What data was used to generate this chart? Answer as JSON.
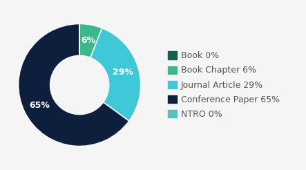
{
  "labels": [
    "Book",
    "Book Chapter",
    "Journal Article",
    "Conference Paper",
    "NTRO"
  ],
  "values": [
    0.001,
    6,
    29,
    65,
    0.001
  ],
  "colors": [
    "#1b5e50",
    "#3ab88a",
    "#3ec8d8",
    "#0d1f3c",
    "#5bbec0"
  ],
  "pct_labels": [
    "",
    "6%",
    "29%",
    "65%",
    ""
  ],
  "legend_labels": [
    "Book 0%",
    "Book Chapter 6%",
    "Journal Article 29%",
    "Conference Paper 65%",
    "NTRO 0%"
  ],
  "text_color": "#ffffff",
  "bg_color": "#f5f5f5",
  "wedge_edge_color": "#f5f5f5",
  "font_size_pct": 9,
  "font_size_legend": 9,
  "startangle": 90,
  "donut_width": 0.52
}
